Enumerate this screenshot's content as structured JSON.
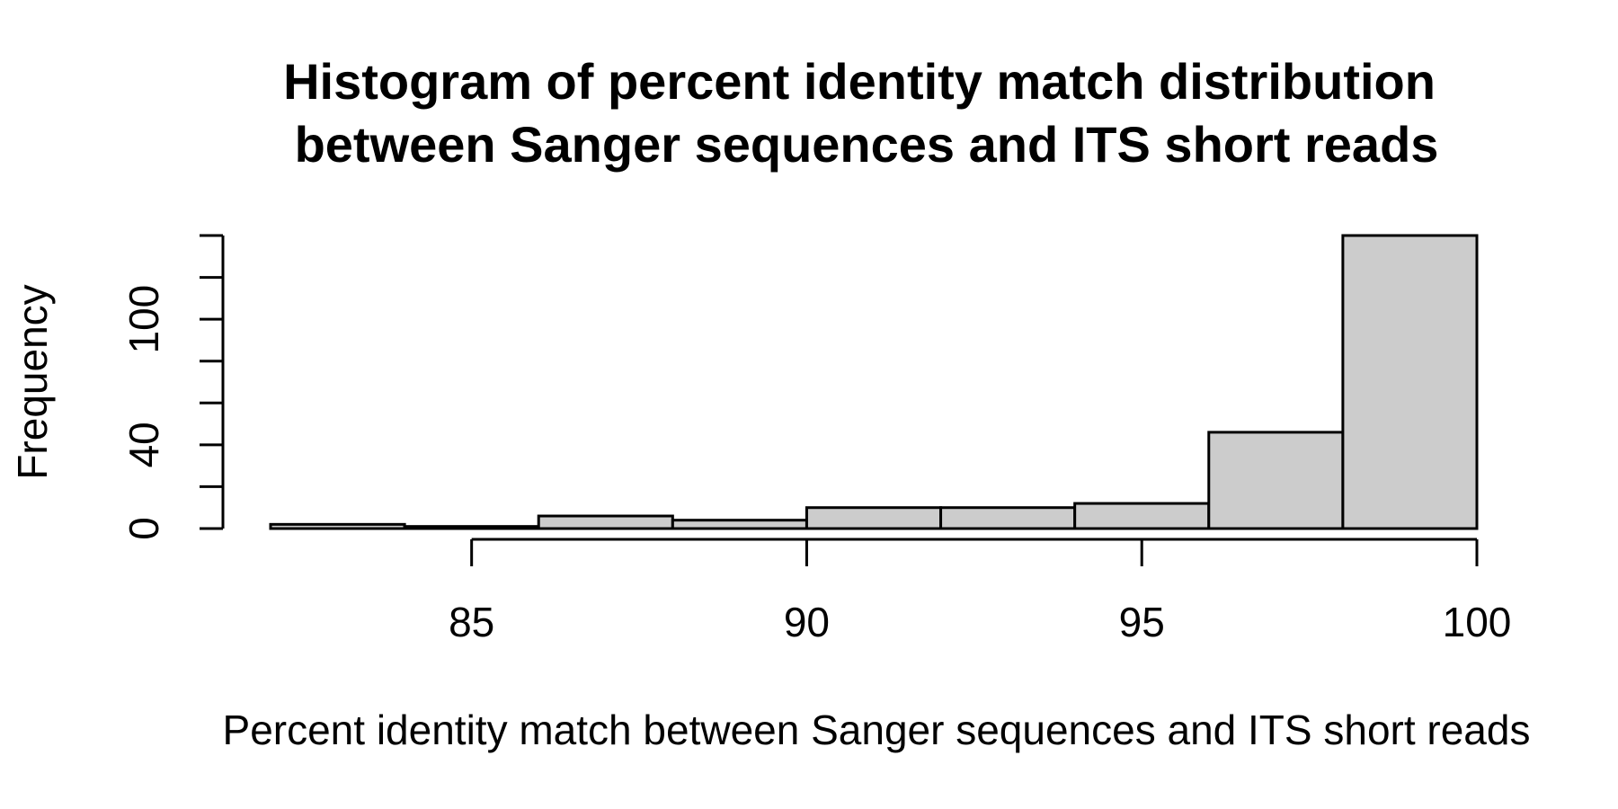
{
  "chart_data": {
    "type": "bar",
    "title_lines": [
      "Histogram of percent identity match distribution",
      "between Sanger sequences and ITS short reads"
    ],
    "xlabel": "Percent identity match between Sanger sequences and ITS short reads",
    "ylabel": "Frequency",
    "bin_edges": [
      82,
      84,
      86,
      88,
      90,
      92,
      94,
      96,
      98,
      100
    ],
    "values": [
      2,
      1,
      6,
      4,
      10,
      10,
      12,
      46,
      140
    ],
    "xlim": [
      82,
      100
    ],
    "ylim": [
      0,
      140
    ],
    "xticks": [
      85,
      90,
      95,
      100
    ],
    "yticks_labeled": [
      0,
      40,
      100
    ],
    "yticks_all": [
      0,
      20,
      40,
      60,
      80,
      100,
      120,
      140
    ],
    "bar_color": "#cccccc",
    "grid": false,
    "legend": "none"
  }
}
